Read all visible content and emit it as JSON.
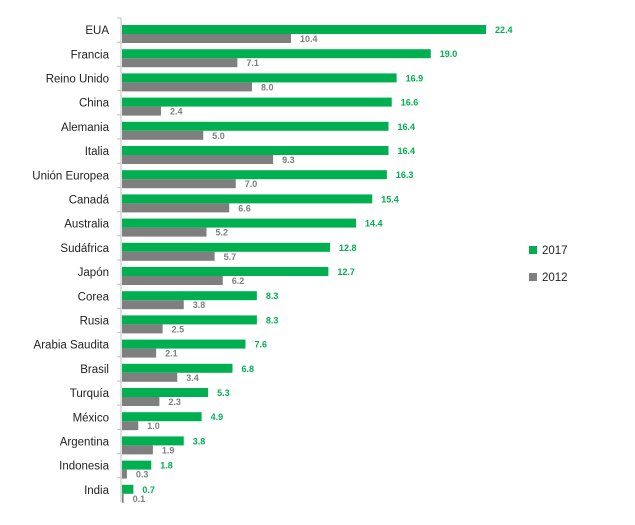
{
  "chart_data": {
    "type": "bar",
    "orientation": "horizontal",
    "title": "",
    "xlabel": "",
    "ylabel": "",
    "xlim": [
      0,
      25
    ],
    "grid": false,
    "legend_position": "right",
    "categories": [
      "EUA",
      "Francia",
      "Reino Unido",
      "China",
      "Alemania",
      "Italia",
      "Unión Europea",
      "Canadá",
      "Australia",
      "Sudáfrica",
      "Japón",
      "Corea",
      "Rusia",
      "Arabia Saudita",
      "Brasil",
      "Turquía",
      "México",
      "Argentina",
      "Indonesia",
      "India"
    ],
    "series": [
      {
        "name": "2017",
        "color": "#00b050",
        "values": [
          22.4,
          19.0,
          16.9,
          16.6,
          16.4,
          16.4,
          16.3,
          15.4,
          14.4,
          12.8,
          12.7,
          8.3,
          8.3,
          7.6,
          6.8,
          5.3,
          4.9,
          3.8,
          1.8,
          0.7
        ],
        "labels": [
          "22.4",
          "19.0",
          "16.9",
          "16.6",
          "16.4",
          "16.4",
          "16.3",
          "15.4",
          "14.4",
          "12.8",
          "12.7",
          "8.3",
          "8.3",
          "7.6",
          "6.8",
          "5.3",
          "4.9",
          "3.8",
          "1.8",
          "0.7"
        ]
      },
      {
        "name": "2012",
        "color": "#7f7f7f",
        "values": [
          10.4,
          7.1,
          8.0,
          2.4,
          5.0,
          9.3,
          7.0,
          6.6,
          5.2,
          5.7,
          6.2,
          3.8,
          2.5,
          2.1,
          3.4,
          2.3,
          1.0,
          1.9,
          0.3,
          0.1
        ],
        "labels": [
          "10.4",
          "7.1",
          "8.0",
          "2.4",
          "5.0",
          "9.3",
          "7.0",
          "6.6",
          "5.2",
          "5.7",
          "6.2",
          "3.8",
          "2.5",
          "2.1",
          "3.4",
          "2.3",
          "1.0",
          "1.9",
          "0.3",
          "0.1"
        ]
      }
    ]
  }
}
